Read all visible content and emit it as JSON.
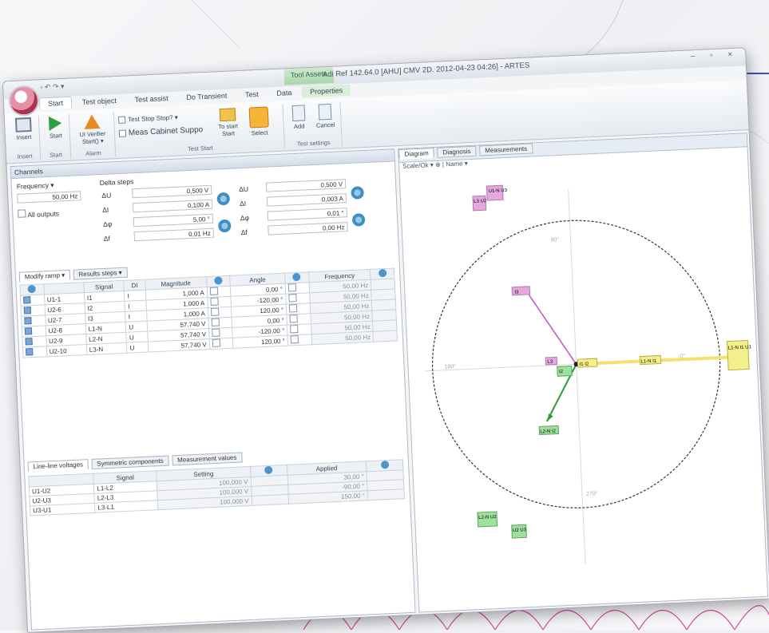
{
  "window": {
    "title": "Adi Ref 142.64.0 [AHU] CMV 2D.  2012-04-23 04:26] - ARTES",
    "context_tab": "Tool Assets",
    "controls": "– ▫ ×"
  },
  "qat": "▫ ↶ ↷ ▾",
  "ribbon_tabs": [
    {
      "label": "Start",
      "active": true
    },
    {
      "label": "Test object",
      "active": false
    },
    {
      "label": "Test assist",
      "active": false
    },
    {
      "label": "Do Transient",
      "active": false
    },
    {
      "label": "Test",
      "active": false
    },
    {
      "label": "Data",
      "active": false
    },
    {
      "label": "Properties",
      "active": false,
      "ctx": true
    }
  ],
  "ribbon": {
    "insert": "Insert",
    "insert_group": "Insert",
    "start": "Start",
    "start_group": "Start",
    "alarm": "UI Verifier Start() ▾",
    "alarm_group": "Alarm",
    "opt1": "Test Stop Stop? ▾",
    "opt2": "Meas Cabinet Suppo",
    "to_start": "To start Start",
    "select": "Select",
    "test_group": "Test Start",
    "add": "Add",
    "cancel": "Cancel",
    "test_settings_group": "Test settings"
  },
  "channels": {
    "title": "Channels",
    "frequency_label": "Frequency ▾",
    "frequency_value": "50,00 Hz",
    "all_outputs": "All outputs",
    "delta_step_label": "Delta steps",
    "left_fields": [
      {
        "label": "ΔU",
        "value": "0,500 V"
      },
      {
        "label": "ΔI",
        "value": "0,100 A"
      },
      {
        "label": "Δφ",
        "value": "5,00 °"
      },
      {
        "label": "Δf",
        "value": "0,01 Hz"
      }
    ],
    "right_fields": [
      {
        "label": "ΔU",
        "value": "0,500 V"
      },
      {
        "label": "ΔI",
        "value": "0,003 A"
      },
      {
        "label": "Δφ",
        "value": "0,01 °"
      },
      {
        "label": "Δf",
        "value": "0,00 Hz"
      }
    ]
  },
  "table": {
    "tabs": [
      "Modify ramp ▾",
      "Results steps ▾"
    ],
    "headers": [
      "",
      "",
      "Signal",
      "DI",
      "Magnitude",
      "",
      "Angle",
      "",
      "Frequency",
      ""
    ],
    "rows": [
      {
        "id": "U1-1",
        "signal": "I1",
        "di": "I",
        "mag": "1,000 A",
        "ang": "0,00 °",
        "freq": "50,00 Hz"
      },
      {
        "id": "U2-6",
        "signal": "I2",
        "di": "I",
        "mag": "1,000 A",
        "ang": "-120,00 °",
        "freq": "50,00 Hz"
      },
      {
        "id": "U2-7",
        "signal": "I3",
        "di": "I",
        "mag": "1,000 A",
        "ang": "120,00 °",
        "freq": "50,00 Hz"
      },
      {
        "id": "U2-8",
        "signal": "L1-N",
        "di": "U",
        "mag": "57,740 V",
        "ang": "0,00 °",
        "freq": "50,00 Hz"
      },
      {
        "id": "U2-9",
        "signal": "L2-N",
        "di": "U",
        "mag": "57,740 V",
        "ang": "-120,00 °",
        "freq": "50,00 Hz"
      },
      {
        "id": "U2-10",
        "signal": "L3-N",
        "di": "U",
        "mag": "57,740 V",
        "ang": "120,00 °",
        "freq": "50,00 Hz"
      }
    ]
  },
  "bottom": {
    "tabs": [
      "Line-line voltages",
      "Symmetric components",
      "Measurement values"
    ],
    "headers": [
      "",
      "Signal",
      "Setting",
      "",
      "Applied",
      ""
    ],
    "rows": [
      {
        "id": "U1-U2",
        "signal": "L1-L2",
        "setting": "100,000 V",
        "applied": "30,00 °"
      },
      {
        "id": "U2-U3",
        "signal": "L2-L3",
        "setting": "100,000 V",
        "applied": "-90,00 °"
      },
      {
        "id": "U3-U1",
        "signal": "L3-L1",
        "setting": "100,000 V",
        "applied": "150,00 °"
      }
    ]
  },
  "diagram": {
    "tabs": [
      "Diagram",
      "Diagnosis",
      "Measurements"
    ],
    "toolbar": "Scale/Ok ▾   ⊕ | Name ▾",
    "axis_labels": {
      "top": "90°",
      "left": "180°",
      "bottom": "270°",
      "right": "0°"
    },
    "labels": [
      {
        "text": "U1-N U3",
        "color": "#e5a7e0"
      },
      {
        "text": "L3 U2",
        "color": "#e5a7e0"
      },
      {
        "text": "I3",
        "color": "#e5a7e0"
      },
      {
        "text": "I1 I2",
        "color": "#f3ef8a"
      },
      {
        "text": "L1-N I1 U1",
        "color": "#f3ef8a"
      },
      {
        "text": "L1-N I1",
        "color": "#f3ef8a"
      },
      {
        "text": "I2",
        "color": "#9fe09f"
      },
      {
        "text": "L2-N I2",
        "color": "#9fe09f"
      },
      {
        "text": "L2-N U2",
        "color": "#9fe09f"
      },
      {
        "text": "U2 U3",
        "color": "#9fe09f"
      },
      {
        "text": "L3",
        "color": "#e5a7e0"
      }
    ]
  }
}
